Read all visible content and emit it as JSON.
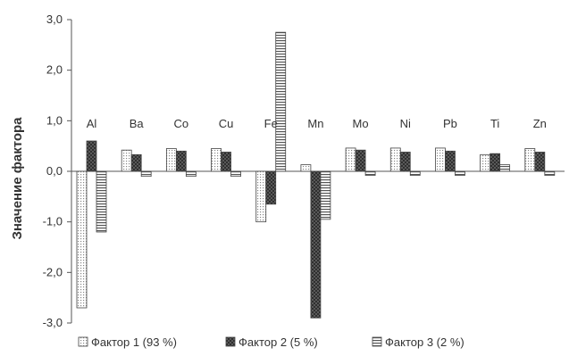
{
  "chart_data": {
    "type": "bar",
    "ylabel": "Значение фактора",
    "ylim": [
      -3.0,
      3.0
    ],
    "yticks": [
      "3,0",
      "2,0",
      "1,0",
      "0,0",
      "-1,0",
      "-2,0",
      "-3,0"
    ],
    "grid": false,
    "legend_position": "bottom",
    "categories": [
      "Al",
      "Ba",
      "Co",
      "Cu",
      "Fe",
      "Mn",
      "Mo",
      "Ni",
      "Pb",
      "Ti",
      "Zn"
    ],
    "series": [
      {
        "name": "Фактор 1 (93 %)",
        "pattern": "dotted",
        "values": [
          -2.7,
          0.42,
          0.45,
          0.45,
          -1.0,
          0.13,
          0.46,
          0.46,
          0.46,
          0.33,
          0.45
        ]
      },
      {
        "name": "Фактор 2 (5 %)",
        "pattern": "crosshatch",
        "values": [
          0.6,
          0.33,
          0.4,
          0.38,
          -0.65,
          -2.9,
          0.42,
          0.38,
          0.4,
          0.35,
          0.38
        ]
      },
      {
        "name": "Фактор 3 (2 %)",
        "pattern": "horizontal-stripes",
        "values": [
          -1.2,
          -0.1,
          -0.1,
          -0.1,
          2.75,
          -0.95,
          -0.08,
          -0.08,
          -0.08,
          0.13,
          -0.08
        ]
      }
    ]
  }
}
